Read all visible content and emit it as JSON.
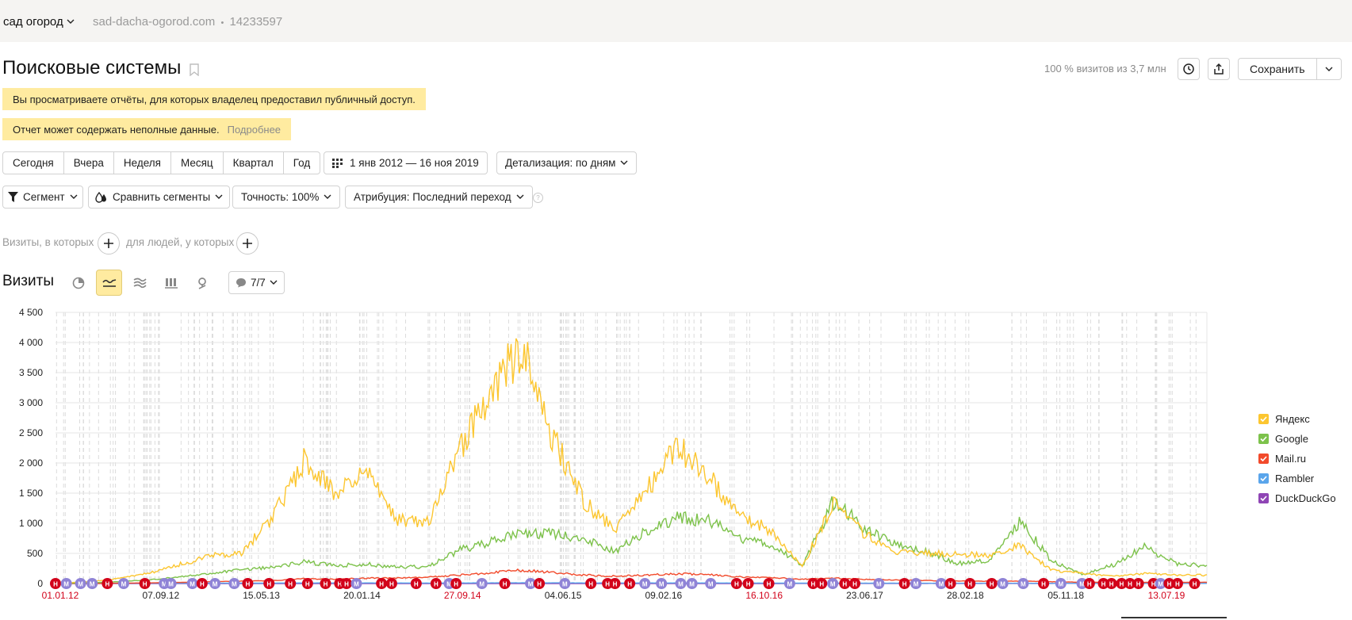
{
  "header": {
    "counter_name": "сад огород",
    "site": "sad-dacha-ogorod.com",
    "separator": "•",
    "counter_id": "14233597"
  },
  "report": {
    "title": "Поисковые системы",
    "visits_info": "100 % визитов из 3,7 млн",
    "save_label": "Сохранить"
  },
  "notices": {
    "public_access": "Вы просматриваете отчёты, для которых владелец предоставил публичный доступ.",
    "incomplete": "Отчет может содержать неполные данные.",
    "incomplete_more": "Подробнее"
  },
  "periods": [
    "Сегодня",
    "Вчера",
    "Неделя",
    "Месяц",
    "Квартал",
    "Год"
  ],
  "date_range": "1 янв 2012 — 16 ноя 2019",
  "detail": "Детализация: по дням",
  "controls": {
    "segment": "Сегмент",
    "compare": "Сравнить сегменты",
    "accuracy": "Точность: 100%",
    "attribution": "Атрибуция: Последний переход",
    "help": "?"
  },
  "filters": {
    "visits_label": "Визиты, в которых",
    "people_label": "для людей, у которых"
  },
  "chart_panel": {
    "title": "Визиты",
    "annotations": "7/7",
    "views": [
      "pie-icon",
      "line-icon",
      "area-icon",
      "bar-icon",
      "map-icon"
    ],
    "active_view": "line-icon"
  },
  "colors": {
    "yandex": "#fcc630",
    "google": "#7dc24b",
    "mailru": "#f24a2b",
    "rambler": "#5aa5eb",
    "duckduckgo": "#8f45b5",
    "notice": "#ffeba0",
    "holiday_marker": "#d2021a",
    "marketing_marker": "#8f83d6"
  },
  "chart_data": {
    "type": "line",
    "title": "",
    "xlabel": "",
    "ylabel": "",
    "ylim": [
      0,
      4500
    ],
    "yticks": [
      "0",
      "500",
      "1 000",
      "1 500",
      "2 000",
      "2 500",
      "3 000",
      "3 500",
      "4 000",
      "4 500"
    ],
    "x_tick_labels": [
      {
        "label": "01.01.12",
        "red": true
      },
      {
        "label": "07.09.12",
        "red": false
      },
      {
        "label": "15.05.13",
        "red": false
      },
      {
        "label": "20.01.14",
        "red": false
      },
      {
        "label": "27.09.14",
        "red": true
      },
      {
        "label": "04.06.15",
        "red": false
      },
      {
        "label": "09.02.16",
        "red": false
      },
      {
        "label": "16.10.16",
        "red": true
      },
      {
        "label": "23.06.17",
        "red": false
      },
      {
        "label": "28.02.18",
        "red": false
      },
      {
        "label": "05.11.18",
        "red": false
      },
      {
        "label": "13.07.19",
        "red": true
      }
    ],
    "x_range": [
      "2012-01-01",
      "2019-11-16"
    ],
    "x": [
      "2012-01",
      "2012-05",
      "2012-09",
      "2013-01",
      "2013-05",
      "2013-08",
      "2013-11",
      "2014-01",
      "2014-02",
      "2014-04",
      "2014-06",
      "2014-08",
      "2014-10",
      "2015-01",
      "2015-03",
      "2015-05",
      "2015-06",
      "2015-08",
      "2015-11",
      "2016-01",
      "2016-03",
      "2016-05",
      "2016-07",
      "2016-09",
      "2016-11",
      "2017-02",
      "2017-05",
      "2017-07",
      "2017-10",
      "2018-01",
      "2018-03",
      "2018-05",
      "2018-08",
      "2018-11",
      "2019-03",
      "2019-06",
      "2019-09",
      "2019-11"
    ],
    "series": [
      {
        "name": "Яндекс",
        "color": "#fcc630",
        "values": [
          0,
          30,
          80,
          170,
          320,
          460,
          510,
          1120,
          2050,
          1470,
          1920,
          1050,
          1020,
          2220,
          3250,
          3900,
          2400,
          1350,
          880,
          1550,
          2280,
          1760,
          1110,
          880,
          280,
          1340,
          820,
          530,
          500,
          490,
          460,
          630,
          220,
          170,
          120,
          170,
          140,
          140
        ]
      },
      {
        "name": "Google",
        "color": "#7dc24b",
        "values": [
          0,
          10,
          30,
          60,
          110,
          170,
          230,
          270,
          360,
          300,
          320,
          270,
          280,
          560,
          690,
          850,
          820,
          760,
          530,
          880,
          1080,
          1030,
          760,
          650,
          290,
          1370,
          930,
          650,
          530,
          330,
          390,
          1050,
          370,
          150,
          310,
          610,
          330,
          300
        ]
      },
      {
        "name": "Mail.ru",
        "color": "#f24a2b",
        "values": [
          0,
          0,
          5,
          10,
          20,
          30,
          40,
          50,
          80,
          70,
          90,
          90,
          110,
          140,
          180,
          220,
          180,
          140,
          120,
          140,
          160,
          150,
          110,
          100,
          70,
          90,
          70,
          60,
          50,
          40,
          40,
          40,
          30,
          20,
          20,
          20,
          20,
          20
        ]
      },
      {
        "name": "Rambler",
        "color": "#5aa5eb",
        "values": [
          0,
          2,
          5,
          6,
          6,
          7,
          8,
          8,
          10,
          10,
          10,
          9,
          9,
          10,
          11,
          12,
          11,
          10,
          9,
          10,
          10,
          10,
          9,
          8,
          7,
          7,
          6,
          6,
          5,
          5,
          5,
          5,
          4,
          4,
          4,
          4,
          4,
          4
        ]
      },
      {
        "name": "DuckDuckGo",
        "color": "#8f45b5",
        "values": [
          0,
          0,
          0,
          0,
          0,
          0,
          0,
          0,
          0,
          0,
          0,
          0,
          0,
          0,
          0,
          0,
          0,
          0,
          0,
          0,
          0,
          0,
          0,
          0,
          1,
          1,
          1,
          1,
          2,
          2,
          2,
          2,
          2,
          3,
          3,
          3,
          3,
          3
        ]
      }
    ],
    "grid": true,
    "legend_position": "right",
    "annotation_markers": {
      "holiday_label": "H",
      "marketing_label": "M"
    }
  }
}
